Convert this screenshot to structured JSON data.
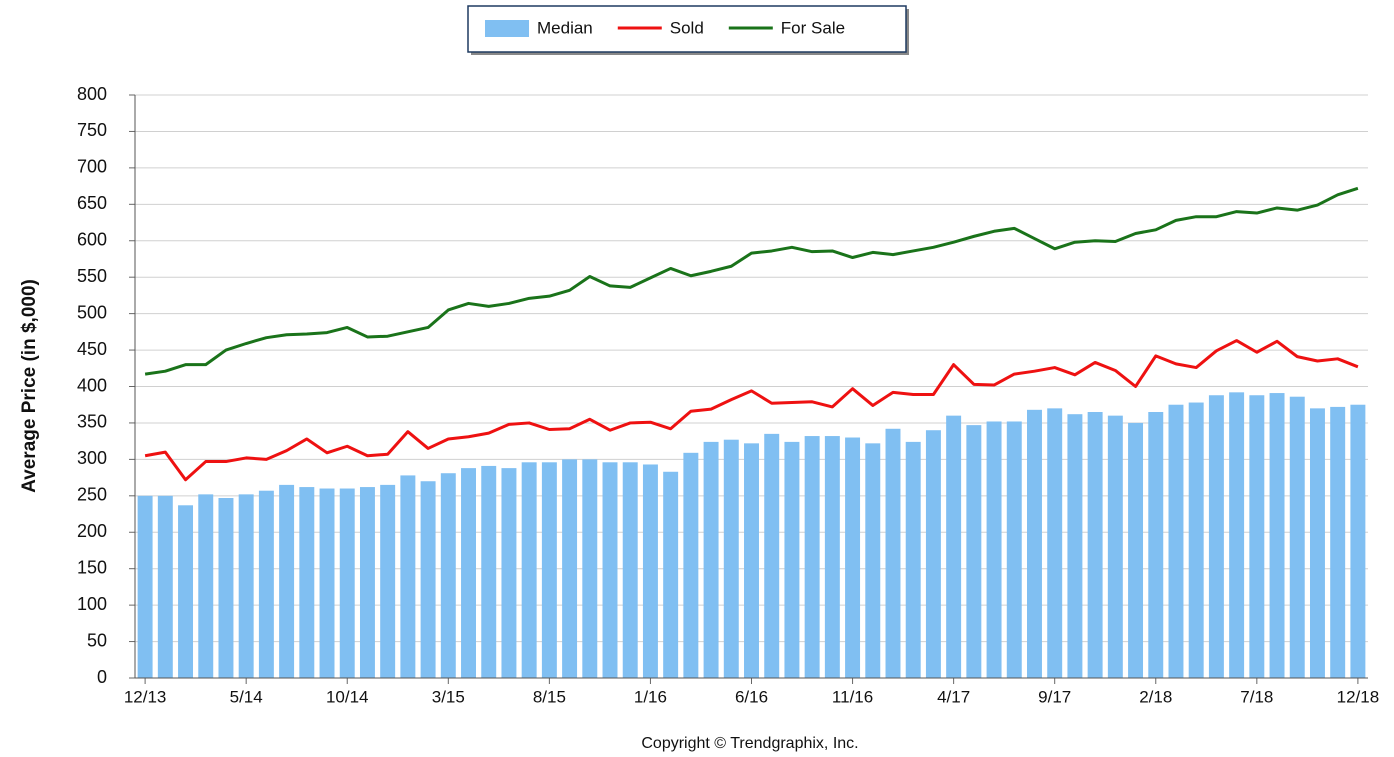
{
  "chart_data": {
    "type": "bar_line",
    "y_axis_label": "Average Price (in $,000)",
    "footer": "Copyright © Trendgraphix, Inc.",
    "categories": [
      "12/13",
      null,
      null,
      null,
      null,
      "5/14",
      null,
      null,
      null,
      null,
      "10/14",
      null,
      null,
      null,
      null,
      "3/15",
      null,
      null,
      null,
      null,
      "8/15",
      null,
      null,
      null,
      null,
      "1/16",
      null,
      null,
      null,
      null,
      "6/16",
      null,
      null,
      null,
      null,
      "11/16",
      null,
      null,
      null,
      null,
      "4/17",
      null,
      null,
      null,
      null,
      "9/17",
      null,
      null,
      null,
      null,
      "2/18",
      null,
      null,
      null,
      null,
      "7/18",
      null,
      null,
      null,
      null,
      "12/18"
    ],
    "series": [
      {
        "name": "Median",
        "color": "#80bff2",
        "kind": "bar",
        "values": [
          250,
          250,
          237,
          252,
          247,
          252,
          257,
          265,
          262,
          260,
          260,
          262,
          265,
          278,
          270,
          281,
          288,
          291,
          288,
          296,
          296,
          300,
          300,
          296,
          296,
          293,
          283,
          309,
          324,
          327,
          322,
          335,
          324,
          332,
          332,
          330,
          322,
          342,
          324,
          340,
          360,
          347,
          352,
          352,
          368,
          370,
          362,
          365,
          360,
          350,
          365,
          375,
          378,
          388,
          392,
          388,
          391,
          386,
          370,
          372,
          375
        ]
      },
      {
        "name": "Sold",
        "color": "#ee1111",
        "kind": "line",
        "values": [
          305,
          310,
          272,
          297,
          297,
          302,
          300,
          312,
          328,
          309,
          318,
          305,
          307,
          338,
          315,
          328,
          331,
          336,
          348,
          350,
          341,
          342,
          355,
          340,
          350,
          351,
          342,
          366,
          369,
          382,
          394,
          377,
          378,
          379,
          372,
          397,
          374,
          392,
          389,
          389,
          430,
          403,
          402,
          417,
          421,
          426,
          416,
          433,
          422,
          400,
          442,
          431,
          426,
          449,
          463,
          447,
          462,
          441,
          435,
          438,
          427
        ]
      },
      {
        "name": "For Sale",
        "color": "#1a731a",
        "kind": "line",
        "values": [
          417,
          421,
          430,
          430,
          450,
          459,
          467,
          471,
          472,
          474,
          481,
          468,
          469,
          475,
          481,
          505,
          514,
          510,
          514,
          521,
          524,
          532,
          551,
          538,
          536,
          549,
          562,
          552,
          558,
          565,
          583,
          586,
          591,
          585,
          586,
          577,
          584,
          581,
          586,
          591,
          598,
          606,
          613,
          617,
          603,
          589,
          598,
          600,
          599,
          610,
          615,
          628,
          633,
          633,
          640,
          638,
          645,
          642,
          649,
          663,
          672
        ]
      }
    ],
    "ylim": [
      0,
      800
    ],
    "yticks": [
      0,
      50,
      100,
      150,
      200,
      250,
      300,
      350,
      400,
      450,
      500,
      550,
      600,
      650,
      700,
      750,
      800
    ],
    "grid": true,
    "legend": "top"
  }
}
